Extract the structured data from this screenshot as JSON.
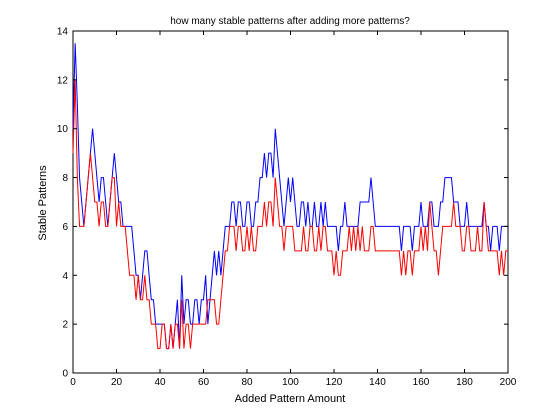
{
  "chart_data": {
    "type": "line",
    "title": "how many stable patterns after adding more patterns?",
    "xlabel": "Added Pattern Amount",
    "ylabel": "Stable Patterns",
    "xlim": [
      0,
      200
    ],
    "ylim": [
      0,
      14
    ],
    "xticks": [
      0,
      20,
      40,
      60,
      80,
      100,
      120,
      140,
      160,
      180,
      200
    ],
    "yticks": [
      0,
      2,
      4,
      6,
      8,
      10,
      12,
      14
    ],
    "grid": false,
    "series": [
      {
        "color": "#0000ff",
        "x": [
          0,
          1,
          2,
          3,
          4,
          5,
          6,
          7,
          8,
          9,
          10,
          11,
          12,
          13,
          14,
          15,
          16,
          17,
          18,
          19,
          20,
          21,
          22,
          23,
          24,
          25,
          26,
          27,
          28,
          29,
          30,
          31,
          32,
          33,
          34,
          35,
          36,
          37,
          38,
          39,
          40,
          41,
          42,
          43,
          44,
          45,
          46,
          47,
          48,
          49,
          50,
          51,
          52,
          53,
          54,
          55,
          56,
          57,
          58,
          59,
          60,
          61,
          62,
          63,
          64,
          65,
          66,
          67,
          68,
          69,
          70,
          71,
          72,
          73,
          74,
          75,
          76,
          77,
          78,
          79,
          80,
          81,
          82,
          83,
          84,
          85,
          86,
          87,
          88,
          89,
          90,
          91,
          92,
          93,
          94,
          95,
          96,
          97,
          98,
          99,
          100,
          101,
          102,
          103,
          104,
          105,
          106,
          107,
          108,
          109,
          110,
          111,
          112,
          113,
          114,
          115,
          116,
          117,
          118,
          119,
          120,
          121,
          122,
          123,
          124,
          125,
          126,
          127,
          128,
          129,
          130,
          131,
          132,
          133,
          134,
          135,
          136,
          137,
          138,
          139,
          140,
          141,
          142,
          143,
          144,
          145,
          146,
          147,
          148,
          149,
          150,
          151,
          152,
          153,
          154,
          155,
          156,
          157,
          158,
          159,
          160,
          161,
          162,
          163,
          164,
          165,
          166,
          167,
          168,
          169,
          170,
          171,
          172,
          173,
          174,
          175,
          176,
          177,
          178,
          179,
          180,
          181,
          182,
          183,
          184,
          185,
          186,
          187,
          188,
          189,
          190,
          191,
          192,
          193,
          194,
          195,
          196,
          197,
          198,
          199,
          200
        ],
        "y": [
          10,
          13.5,
          11,
          8,
          7,
          6,
          7,
          8,
          9,
          10,
          9,
          8,
          7,
          8,
          8,
          7,
          6,
          7,
          8,
          9,
          8,
          7,
          7,
          6,
          6,
          6,
          6,
          6,
          5,
          4,
          4,
          3,
          4,
          5,
          5,
          4,
          3,
          3,
          2,
          2,
          2,
          2,
          2,
          1,
          1,
          2,
          1,
          2,
          3,
          1,
          4,
          2,
          3,
          3,
          2,
          2,
          3,
          3,
          2,
          3,
          3,
          4,
          2,
          3,
          4,
          5,
          4,
          5,
          4,
          5,
          6,
          6,
          6,
          7,
          7,
          6,
          7,
          7,
          6,
          6,
          7,
          7,
          6,
          6,
          7,
          7,
          8,
          8,
          9,
          8,
          9,
          9,
          8,
          10,
          9,
          8,
          7,
          6,
          7,
          8,
          7,
          8,
          7,
          6,
          6,
          7,
          7,
          6,
          7,
          6,
          6,
          7,
          6,
          6,
          7,
          6,
          7,
          6,
          6,
          6,
          6,
          6,
          5,
          6,
          6,
          7,
          6,
          6,
          6,
          6,
          6,
          6,
          7,
          7,
          7,
          7,
          7,
          8,
          7,
          6,
          6,
          6,
          6,
          6,
          6,
          6,
          6,
          6,
          6,
          6,
          6,
          5,
          6,
          6,
          6,
          6,
          5,
          6,
          6,
          6,
          7,
          6,
          6,
          6,
          7,
          7,
          6,
          6,
          6,
          7,
          7,
          8,
          8,
          8,
          8,
          7,
          7,
          7,
          6,
          6,
          6,
          7,
          6,
          6,
          6,
          6,
          6,
          6,
          6,
          7,
          6,
          6,
          5,
          6,
          6,
          6,
          5,
          6,
          6,
          6,
          6
        ],
        "values_note": ""
      },
      {
        "color": "#ff0000",
        "x": [
          0,
          1,
          2,
          3,
          4,
          5,
          6,
          7,
          8,
          9,
          10,
          11,
          12,
          13,
          14,
          15,
          16,
          17,
          18,
          19,
          20,
          21,
          22,
          23,
          24,
          25,
          26,
          27,
          28,
          29,
          30,
          31,
          32,
          33,
          34,
          35,
          36,
          37,
          38,
          39,
          40,
          41,
          42,
          43,
          44,
          45,
          46,
          47,
          48,
          49,
          50,
          51,
          52,
          53,
          54,
          55,
          56,
          57,
          58,
          59,
          60,
          61,
          62,
          63,
          64,
          65,
          66,
          67,
          68,
          69,
          70,
          71,
          72,
          73,
          74,
          75,
          76,
          77,
          78,
          79,
          80,
          81,
          82,
          83,
          84,
          85,
          86,
          87,
          88,
          89,
          90,
          91,
          92,
          93,
          94,
          95,
          96,
          97,
          98,
          99,
          100,
          101,
          102,
          103,
          104,
          105,
          106,
          107,
          108,
          109,
          110,
          111,
          112,
          113,
          114,
          115,
          116,
          117,
          118,
          119,
          120,
          121,
          122,
          123,
          124,
          125,
          126,
          127,
          128,
          129,
          130,
          131,
          132,
          133,
          134,
          135,
          136,
          137,
          138,
          139,
          140,
          141,
          142,
          143,
          144,
          145,
          146,
          147,
          148,
          149,
          150,
          151,
          152,
          153,
          154,
          155,
          156,
          157,
          158,
          159,
          160,
          161,
          162,
          163,
          164,
          165,
          166,
          167,
          168,
          169,
          170,
          171,
          172,
          173,
          174,
          175,
          176,
          177,
          178,
          179,
          180,
          181,
          182,
          183,
          184,
          185,
          186,
          187,
          188,
          189,
          190,
          191,
          192,
          193,
          194,
          195,
          196,
          197,
          198,
          199,
          200
        ],
        "y": [
          9,
          12,
          8,
          6,
          6,
          6,
          7,
          8,
          9,
          8,
          7,
          7,
          6,
          7,
          7,
          6,
          6,
          7,
          8,
          8,
          6,
          7,
          6,
          6,
          6,
          5,
          4,
          4,
          4,
          3,
          4,
          3,
          3,
          4,
          3,
          3,
          2,
          2,
          2,
          1,
          1,
          2,
          2,
          1,
          1,
          2,
          1,
          2,
          2,
          1,
          3,
          1,
          2,
          2,
          1,
          2,
          2,
          2,
          2,
          2,
          2,
          2,
          3,
          3,
          3,
          3,
          2,
          2,
          3,
          4,
          5,
          5,
          6,
          6,
          6,
          5,
          6,
          6,
          5,
          5,
          6,
          5,
          6,
          5,
          5,
          6,
          6,
          6,
          7,
          6,
          7,
          7,
          6,
          8,
          7,
          6,
          6,
          5,
          6,
          6,
          6,
          6,
          5,
          5,
          5,
          5,
          6,
          5,
          5,
          6,
          6,
          5,
          5,
          6,
          5,
          6,
          6,
          5,
          5,
          5,
          4,
          5,
          4,
          4,
          5,
          5,
          5,
          6,
          5,
          6,
          5,
          6,
          5,
          6,
          5,
          5,
          5,
          6,
          6,
          5,
          5,
          5,
          5,
          5,
          5,
          5,
          5,
          5,
          5,
          5,
          5,
          4,
          5,
          4,
          5,
          5,
          4,
          5,
          5,
          5,
          6,
          5,
          6,
          5,
          7,
          6,
          5,
          5,
          4,
          5,
          6,
          6,
          6,
          6,
          6,
          7,
          6,
          6,
          6,
          5,
          5,
          6,
          6,
          5,
          5,
          5,
          6,
          5,
          5,
          7,
          6,
          5,
          5,
          5,
          5,
          5,
          4,
          5,
          4,
          5,
          5
        ],
        "values_note": ""
      }
    ]
  }
}
